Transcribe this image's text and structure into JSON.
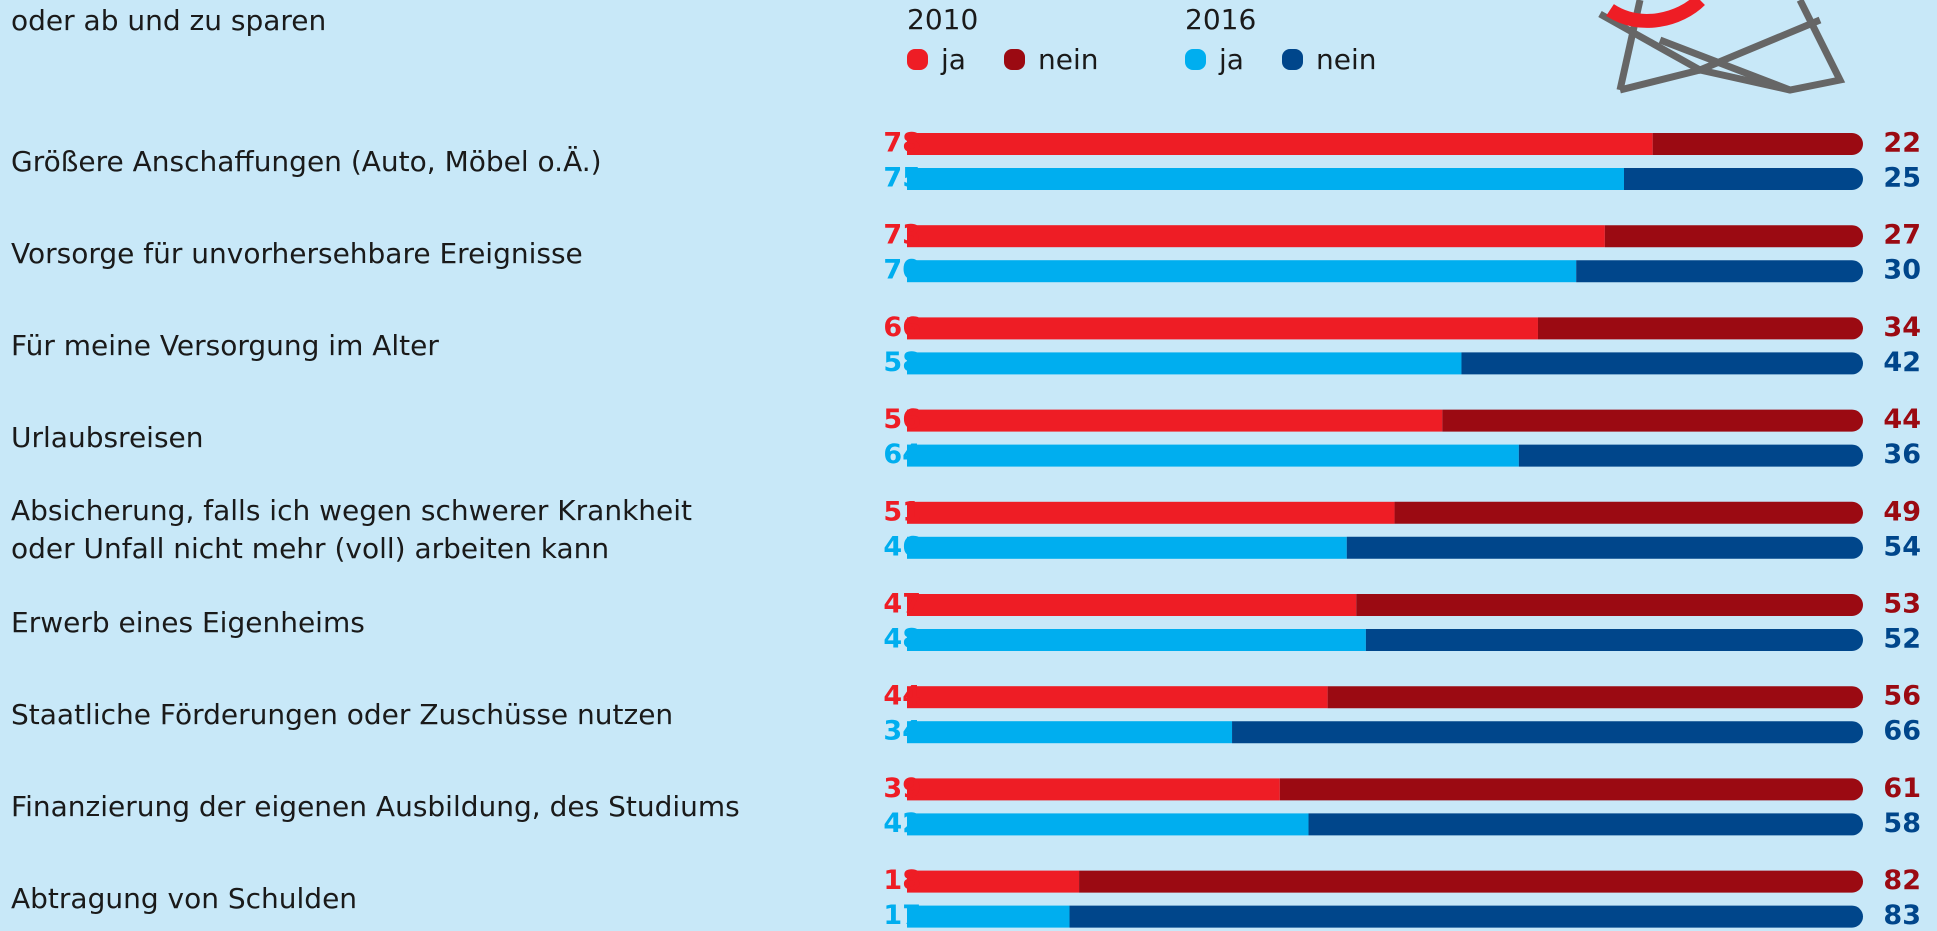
{
  "chart_data": {
    "type": "stacked-bar",
    "title": "oder ab und zu sparen",
    "categories": [
      "Größere Anschaffungen (Auto, Möbel o.Ä.)",
      "Vorsorge für unvorhersehbare Ereignisse",
      "Für meine Versorgung im Alter",
      "Urlaubsreisen",
      "Absicherung, falls ich wegen schwerer Krankheit\noder Unfall nicht mehr (voll) arbeiten kann",
      "Erwerb eines Eigenheims",
      "Staatliche Förderungen oder Zuschüsse nutzen",
      "Finanzierung der eigenen Ausbildung, des Studiums",
      "Abtragung von Schulden"
    ],
    "groups": [
      {
        "label": "2010",
        "series": [
          {
            "name": "ja",
            "color": "#ee1d25",
            "values": [
              78,
              73,
              66,
              56,
              51,
              47,
              44,
              39,
              18
            ]
          },
          {
            "name": "nein",
            "color": "#9b0a12",
            "values": [
              22,
              27,
              34,
              44,
              49,
              53,
              56,
              61,
              82
            ]
          }
        ]
      },
      {
        "label": "2016",
        "series": [
          {
            "name": "ja",
            "color": "#00aeef",
            "values": [
              75,
              70,
              58,
              64,
              46,
              48,
              34,
              42,
              17
            ]
          },
          {
            "name": "nein",
            "color": "#00468b",
            "values": [
              25,
              30,
              42,
              36,
              54,
              52,
              66,
              58,
              83
            ]
          }
        ]
      }
    ]
  }
}
